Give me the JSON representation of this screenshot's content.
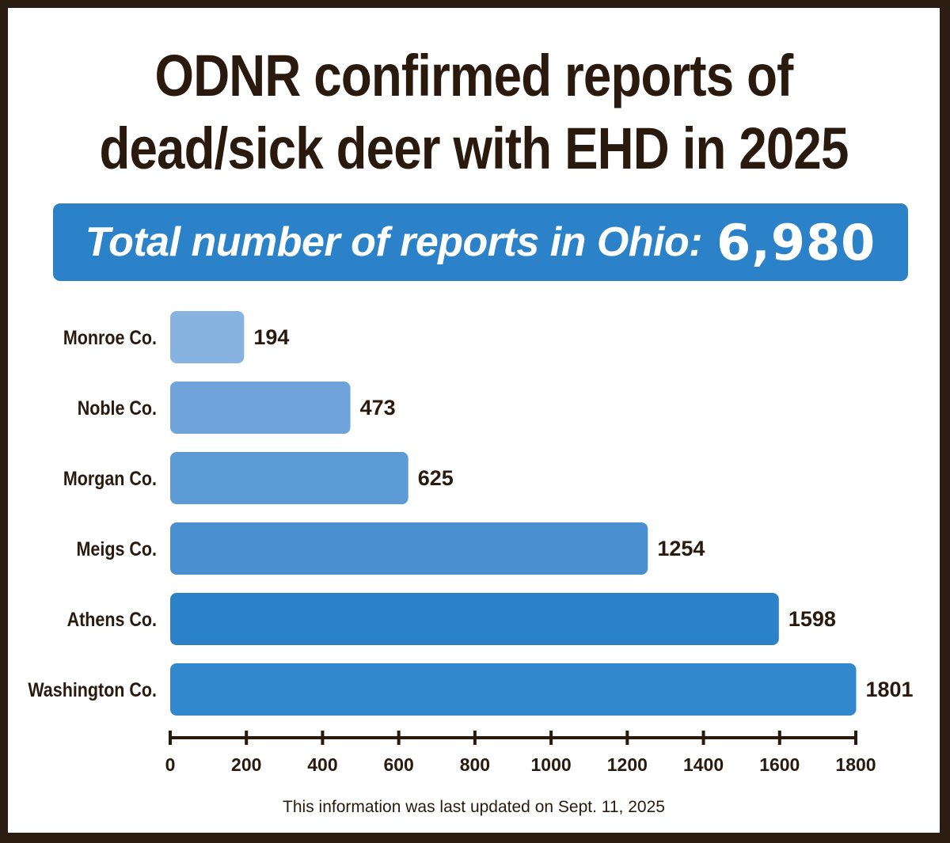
{
  "title_line1": "ODNR confirmed reports of",
  "title_line2": "dead/sick deer with EHD in 2025",
  "banner": {
    "label": "Total number of reports in Ohio:",
    "value": "6,980"
  },
  "footnote": "This information was last updated on Sept. 11, 2025",
  "colors": {
    "border": "#2b1d12",
    "text": "#2a1a0e",
    "banner": "#2b82c9",
    "bars": [
      "#86b3e0",
      "#6ea4da",
      "#5d9bd6",
      "#4a90d1",
      "#2b82c9",
      "#3288cc"
    ]
  },
  "chart_data": {
    "type": "bar",
    "orientation": "horizontal",
    "categories": [
      "Monroe Co.",
      "Noble Co.",
      "Morgan Co.",
      "Meigs Co.",
      "Athens Co.",
      "Washington Co."
    ],
    "values": [
      194,
      473,
      625,
      1254,
      1598,
      1801
    ],
    "value_labels": [
      "194",
      "473",
      "625",
      "1254",
      "1598",
      "1801"
    ],
    "xlim": [
      0,
      1800
    ],
    "xticks": [
      "0",
      "200",
      "400",
      "600",
      "800",
      "1000",
      "1200",
      "1400",
      "1600",
      "1800"
    ],
    "xlabel": "",
    "ylabel": "",
    "grid": false,
    "legend": "none"
  }
}
